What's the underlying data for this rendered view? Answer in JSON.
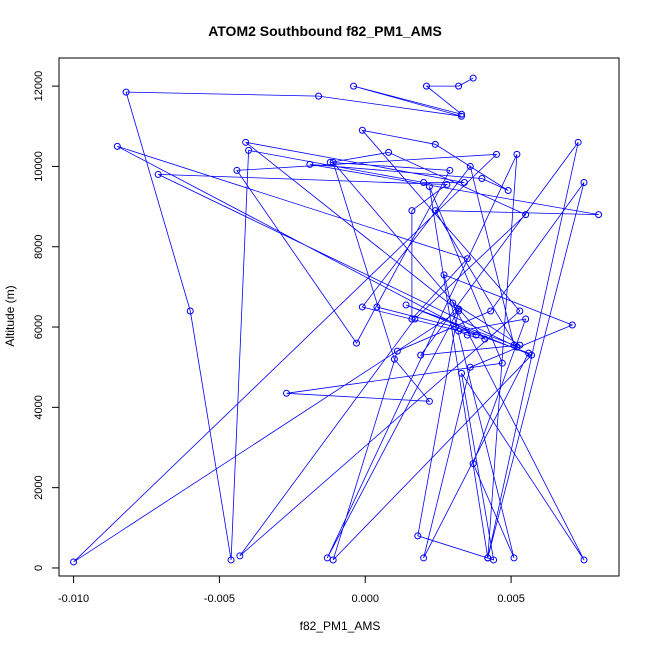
{
  "chart_data": {
    "type": "line",
    "title": "ATOM2 Southbound f82_PM1_AMS",
    "xlabel": "f82_PM1_AMS",
    "ylabel": "Altitude (m)",
    "xlim": [
      -0.0105,
      0.0087
    ],
    "ylim": [
      -200,
      12700
    ],
    "x_ticks": [
      {
        "value": -0.01,
        "label": "-0.010"
      },
      {
        "value": -0.005,
        "label": "-0.005"
      },
      {
        "value": 0.0,
        "label": "0.000"
      },
      {
        "value": 0.005,
        "label": "0.005"
      }
    ],
    "y_ticks": [
      {
        "value": 0,
        "label": "0"
      },
      {
        "value": 2000,
        "label": "2000"
      },
      {
        "value": 4000,
        "label": "4000"
      },
      {
        "value": 6000,
        "label": "6000"
      },
      {
        "value": 8000,
        "label": "8000"
      },
      {
        "value": 10000,
        "label": "10000"
      },
      {
        "value": 12000,
        "label": "12000"
      }
    ],
    "grid": false,
    "legend": "none",
    "colors": {
      "series": "#0000ff",
      "axis": "#000000"
    },
    "series": [
      {
        "x": [
          0.0037,
          0.0032,
          0.0021,
          0.0033,
          -0.0004,
          0.0033,
          -0.0016,
          -0.0082,
          -0.006,
          -0.0046,
          -0.004,
          0.002,
          0.0034,
          -0.0041,
          0.0032,
          -0.01,
          0.0045,
          -0.0044,
          -0.0003,
          0.0029,
          -0.0012,
          0.0008,
          0.0055,
          0.0017,
          -0.0043,
          0.0053,
          -0.0001,
          0.0024,
          0.0049,
          0.004,
          -0.0019,
          0.008,
          0.0024,
          0.0052,
          -0.0071,
          0.0028,
          0.0016,
          0.0016,
          0.0035,
          -0.0085,
          0.0038,
          -0.0001,
          0.0036,
          0.0051,
          0.0014,
          0.0057,
          -0.0011,
          0.0011,
          0.0043,
          0.0075,
          0.0042,
          0.0073,
          0.0019,
          0.0053,
          0.003,
          0.0075,
          0.0033,
          0.0044,
          0.0018,
          0.0032,
          -0.0013,
          0.0052,
          0.0042,
          0.0022,
          0.0047,
          -0.0027,
          0.0022,
          0.001,
          -0.0011,
          0.0041,
          0.0035,
          0.0032,
          0.0055,
          0.0037,
          0.0051,
          0.0027,
          0.0071,
          0.0036,
          0.002,
          0.0056,
          0.0031,
          0.0004
        ],
        "y": [
          12200,
          12000,
          12000,
          11300,
          12000,
          11250,
          11750,
          11850,
          6400,
          200,
          10400,
          9600,
          9600,
          10600,
          6400,
          150,
          10300,
          9900,
          5600,
          9900,
          10100,
          10350,
          8800,
          6200,
          300,
          6400,
          10900,
          10550,
          9400,
          9700,
          10050,
          8800,
          8900,
          5500,
          9800,
          9550,
          8900,
          6200,
          7700,
          10500,
          5800,
          6500,
          10000,
          5550,
          6550,
          5300,
          200,
          5400,
          6400,
          9600,
          250,
          10600,
          5300,
          5550,
          6600,
          200,
          4850,
          200,
          800,
          6450,
          250,
          10300,
          250,
          9500,
          5100,
          4350,
          4150,
          5200,
          10100,
          5700,
          5800,
          5900,
          6200,
          2600,
          250,
          7300,
          6050,
          5000,
          250,
          5350,
          6000,
          6500
        ]
      }
    ]
  }
}
